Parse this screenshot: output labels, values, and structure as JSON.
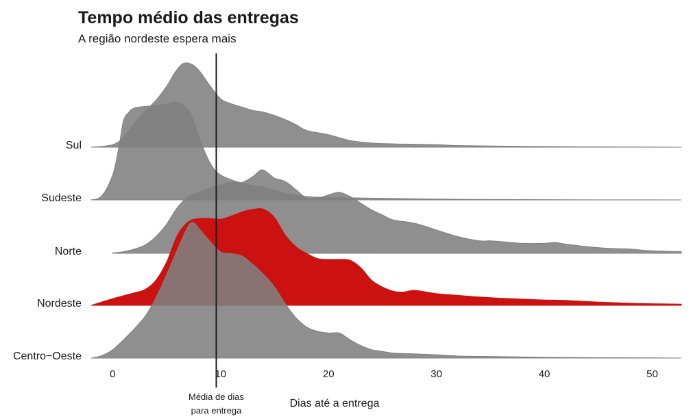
{
  "chart_data": {
    "type": "area",
    "chart_kind": "ridgeline",
    "title": "Tempo médio das entregas",
    "subtitle": "A região nordeste espera mais",
    "xlabel": "Dias até a entrega",
    "xlim": [
      -2.5,
      52.7
    ],
    "x_ticks": [
      0,
      10,
      20,
      30,
      40,
      50
    ],
    "grid": false,
    "legend": "none",
    "categories": [
      "Sul",
      "Sudeste",
      "Norte",
      "Nordeste",
      "Centro−Oeste"
    ],
    "highlight": "Nordeste",
    "colors": {
      "default": "#808080",
      "highlight": "#cc1111",
      "mean_line": "#1a1a1a"
    },
    "mean_line": {
      "x": 9.6,
      "label_line1": "Média de dias",
      "label_line2": "para entrega"
    },
    "series": [
      {
        "name": "Sul",
        "x": [
          -2,
          0,
          1,
          2,
          3,
          4,
          5,
          5.8,
          6.5,
          7.2,
          8,
          9,
          10,
          11,
          12,
          13,
          14,
          15,
          16,
          17,
          18,
          20,
          22,
          24,
          26,
          28,
          30,
          32,
          35,
          38,
          40,
          45,
          50,
          52.7
        ],
        "values": [
          0,
          0.03,
          0.12,
          0.28,
          0.43,
          0.56,
          0.73,
          0.9,
          1.0,
          1.0,
          0.92,
          0.74,
          0.58,
          0.52,
          0.48,
          0.44,
          0.42,
          0.38,
          0.33,
          0.27,
          0.2,
          0.15,
          0.08,
          0.05,
          0.04,
          0.035,
          0.03,
          0.02,
          0.015,
          0.01,
          0.008,
          0.004,
          0.002,
          0
        ]
      },
      {
        "name": "Sudeste",
        "x": [
          -2,
          -1,
          0,
          0.6,
          1,
          1.5,
          2,
          3,
          4,
          5,
          6,
          7,
          7.5,
          8,
          9,
          10,
          12,
          14,
          16,
          18,
          20,
          22,
          25,
          30,
          35,
          40,
          45,
          50,
          52.7
        ],
        "values": [
          0,
          0.05,
          0.3,
          0.65,
          0.95,
          1.05,
          1.1,
          1.12,
          1.13,
          1.15,
          1.17,
          1.08,
          0.95,
          0.75,
          0.45,
          0.3,
          0.2,
          0.15,
          0.08,
          0.04,
          0.03,
          0.025,
          0.02,
          0.01,
          0.005,
          0.003,
          0.001,
          0.001,
          0
        ]
      },
      {
        "name": "Norte",
        "x": [
          0,
          1,
          2,
          3,
          4,
          5,
          6,
          7,
          8,
          9,
          10,
          11,
          12,
          13,
          13.8,
          14.5,
          15,
          16,
          17,
          18,
          19,
          20,
          21,
          22,
          23,
          24,
          25,
          26,
          28,
          30,
          32,
          34,
          35,
          36,
          38,
          40,
          41,
          42,
          44,
          46,
          48,
          50,
          52.7
        ],
        "values": [
          0.005,
          0.02,
          0.05,
          0.1,
          0.2,
          0.35,
          0.55,
          0.68,
          0.73,
          0.78,
          0.82,
          0.85,
          0.85,
          0.92,
          1.0,
          0.95,
          0.9,
          0.86,
          0.76,
          0.66,
          0.66,
          0.7,
          0.73,
          0.68,
          0.6,
          0.52,
          0.46,
          0.4,
          0.36,
          0.28,
          0.2,
          0.15,
          0.15,
          0.14,
          0.12,
          0.12,
          0.13,
          0.11,
          0.08,
          0.06,
          0.05,
          0.03,
          0.02
        ]
      },
      {
        "name": "Nordeste",
        "x": [
          -2,
          0,
          2,
          3,
          4,
          5,
          6,
          7,
          8,
          9,
          10,
          11,
          12,
          13,
          14,
          15,
          16,
          17,
          18,
          19,
          20,
          21,
          22,
          23,
          24,
          25,
          26,
          27,
          28,
          30,
          32,
          34,
          36,
          38,
          40,
          42,
          44,
          46,
          48,
          50,
          52.7
        ],
        "values": [
          0,
          0.08,
          0.15,
          0.19,
          0.3,
          0.52,
          0.84,
          1.0,
          1.04,
          1.04,
          1.03,
          1.07,
          1.12,
          1.15,
          1.15,
          1.05,
          0.84,
          0.7,
          0.62,
          0.56,
          0.55,
          0.55,
          0.54,
          0.45,
          0.3,
          0.22,
          0.17,
          0.16,
          0.18,
          0.14,
          0.12,
          0.1,
          0.085,
          0.075,
          0.065,
          0.06,
          0.045,
          0.035,
          0.025,
          0.02,
          0.015
        ]
      },
      {
        "name": "Centro−Oeste",
        "x": [
          -2,
          -1,
          0,
          1,
          2,
          3,
          4,
          5,
          6,
          7,
          7.5,
          8,
          9,
          10,
          11,
          12,
          13,
          14,
          15,
          16,
          17,
          18,
          19,
          20,
          21,
          22,
          23,
          24,
          25,
          26,
          28,
          30,
          32,
          35,
          40,
          45,
          50,
          52.7
        ],
        "values": [
          0,
          0.03,
          0.1,
          0.22,
          0.35,
          0.5,
          0.72,
          1.0,
          1.3,
          1.58,
          1.62,
          1.55,
          1.4,
          1.27,
          1.25,
          1.22,
          1.12,
          1.0,
          0.85,
          0.65,
          0.48,
          0.37,
          0.32,
          0.3,
          0.3,
          0.22,
          0.15,
          0.1,
          0.08,
          0.06,
          0.05,
          0.04,
          0.025,
          0.02,
          0.01,
          0.005,
          0.003,
          0
        ]
      }
    ]
  }
}
